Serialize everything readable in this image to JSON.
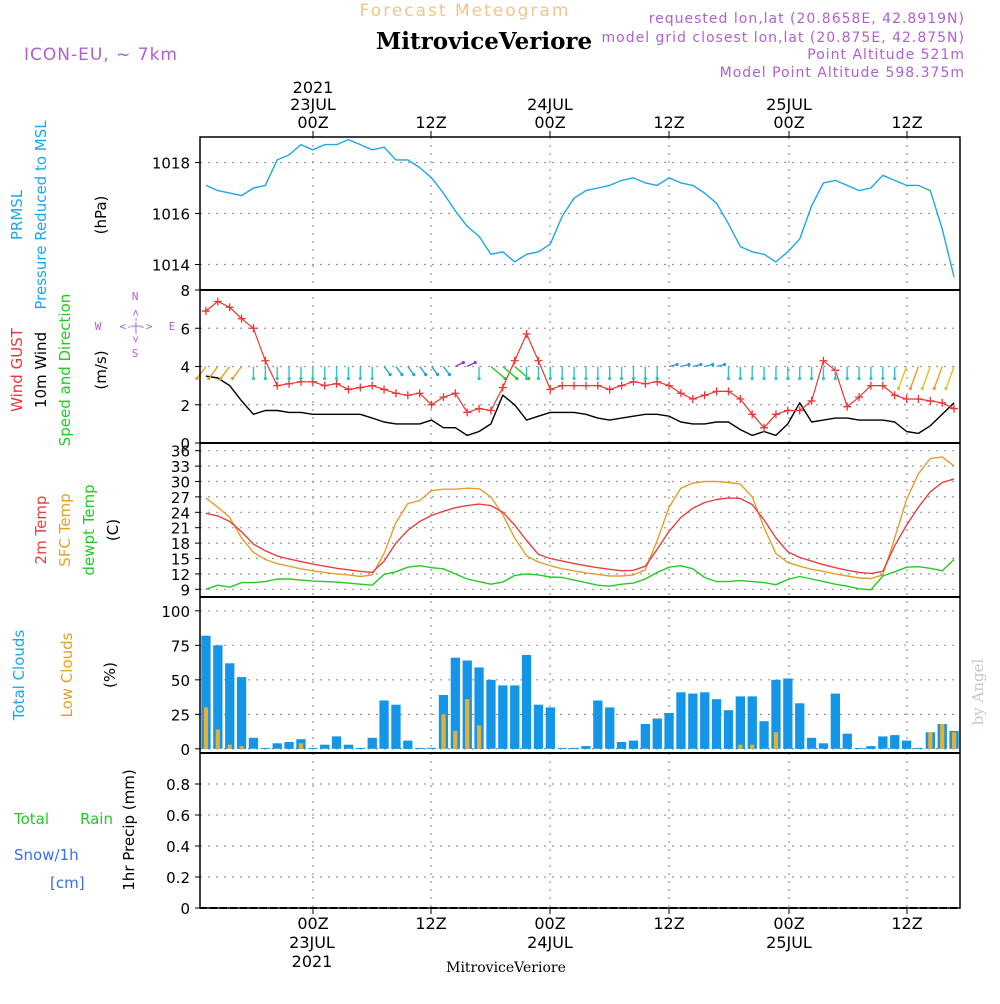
{
  "header": {
    "product": "Forecast Meteogram",
    "model": "ICON-EU, ~ 7km",
    "location": "MitroviceVeriore",
    "requested": "requested lon,lat (20.8658E, 42.8919N)",
    "closest": "model grid closest lon,lat (20.875E, 42.875N)",
    "point_altitude": "Point Altitude 521m",
    "model_altitude": "Model Point Altitude 598.375m",
    "watermark": "by Angel"
  },
  "time_axis": {
    "ticks": [
      "00Z",
      "12Z",
      "00Z",
      "12Z",
      "00Z",
      "12Z"
    ],
    "top_dates": [
      "23JUL",
      "24JUL",
      "25JUL"
    ],
    "top_year": "2021",
    "bottom_dates": [
      "23JUL",
      "24JUL",
      "25JUL"
    ],
    "bottom_year": "2021",
    "footer_location": "MitroviceVeriore"
  },
  "panels": {
    "pressure": {
      "labels": [
        "PRMSL",
        "Pressure Reduced to MSL",
        "(hPa)"
      ],
      "yticks": [
        "1014",
        "1016",
        "1018"
      ],
      "ylim": [
        1013,
        1019
      ]
    },
    "wind": {
      "labels": [
        "Wind GUST",
        "10m Wind",
        "Speed and Direction",
        "(m/s)"
      ],
      "compass": {
        "north": "N",
        "south": "S",
        "west": "W",
        "east": "E",
        "arrows_h": "<-|->",
        "arrows_v": "<-|->"
      },
      "yticks": [
        "0",
        "2",
        "4",
        "6",
        "8"
      ],
      "ylim": [
        0,
        8
      ]
    },
    "temp": {
      "labels": [
        "2m Temp",
        "SFC Temp",
        "dewpt Temp",
        "(C)"
      ],
      "yticks": [
        "9",
        "12",
        "15",
        "18",
        "21",
        "24",
        "27",
        "30",
        "33",
        "36"
      ],
      "ylim": [
        7.5,
        37.5
      ]
    },
    "clouds": {
      "labels": [
        "Total Clouds",
        "Low Clouds",
        "(%)"
      ],
      "yticks": [
        "0",
        "25",
        "50",
        "75",
        "100"
      ],
      "ylim": [
        -3,
        110
      ]
    },
    "precip": {
      "labels": [
        "Total",
        "Rain",
        "Snow/1h",
        "[cm]",
        "1hr Precip (mm)"
      ],
      "yticks": [
        "0",
        "0.2",
        "0.4",
        "0.6",
        "0.8"
      ],
      "ylim": [
        0,
        1
      ]
    }
  },
  "colors": {
    "pressure": "#1ea7e8",
    "gust": "#ee3535",
    "wind": "#000000",
    "t2m": "#e84040",
    "tsfc": "#e0a030",
    "dewpt": "#22cc22",
    "total_clouds": "#1496e8",
    "low_clouds": "#e8b030",
    "label_green": "#22cc22",
    "label_blue": "#3a6cf0",
    "label_cyan": "#1aa8e8",
    "label_purple": "#b060d0",
    "label_red": "#ee3535",
    "label_orange": "#e8a020",
    "title_orange": "#f2c58a"
  },
  "chart_data": [
    {
      "type": "line",
      "name": "pressure",
      "x": [
        0,
        1,
        2,
        3,
        4,
        5,
        6,
        7,
        8,
        9,
        10,
        11,
        12,
        13,
        14,
        15,
        16,
        17,
        18,
        19,
        20,
        21,
        22,
        23,
        24,
        25,
        26,
        27,
        28,
        29,
        30,
        31,
        32,
        33,
        34,
        35,
        36,
        37,
        38,
        39,
        40,
        41,
        42,
        43,
        44,
        45,
        46,
        47,
        48,
        49,
        50,
        51,
        52,
        53,
        54,
        55,
        56,
        57,
        58,
        59,
        60,
        61,
        62,
        63
      ],
      "values": [
        1017.1,
        1016.9,
        1016.8,
        1016.7,
        1017.0,
        1017.1,
        1018.1,
        1018.3,
        1018.7,
        1018.5,
        1018.7,
        1018.7,
        1018.9,
        1018.7,
        1018.5,
        1018.6,
        1018.1,
        1018.1,
        1017.8,
        1017.4,
        1016.8,
        1016.1,
        1015.5,
        1015.1,
        1014.4,
        1014.5,
        1014.1,
        1014.4,
        1014.5,
        1014.8,
        1015.9,
        1016.6,
        1016.9,
        1017.0,
        1017.1,
        1017.3,
        1017.4,
        1017.2,
        1017.1,
        1017.4,
        1017.2,
        1017.1,
        1016.8,
        1016.4,
        1015.6,
        1014.7,
        1014.5,
        1014.4,
        1014.1,
        1014.5,
        1015.0,
        1016.3,
        1017.2,
        1017.3,
        1017.1,
        1016.9,
        1017.0,
        1017.5,
        1017.3,
        1017.1,
        1017.1,
        1016.9,
        1015.4,
        1013.5
      ],
      "xlabel": "",
      "ylabel": "(hPa)"
    },
    {
      "type": "line",
      "name": "wind",
      "series": [
        {
          "name": "Wind GUST",
          "values": [
            6.9,
            7.4,
            7.1,
            6.5,
            6.0,
            4.3,
            3.0,
            3.1,
            3.2,
            3.2,
            3.0,
            3.1,
            2.8,
            2.9,
            3.0,
            2.8,
            2.6,
            2.5,
            2.6,
            2.0,
            2.4,
            2.6,
            1.6,
            1.8,
            1.7,
            2.9,
            4.3,
            5.7,
            4.3,
            2.8,
            3.0,
            3.0,
            3.0,
            3.0,
            2.8,
            3.0,
            3.2,
            3.1,
            3.2,
            3.0,
            2.6,
            2.3,
            2.5,
            2.7,
            2.7,
            2.3,
            1.5,
            0.8,
            1.5,
            1.7,
            1.7,
            2.2,
            4.3,
            3.8,
            1.9,
            2.4,
            3.0,
            3.0,
            2.5,
            2.3,
            2.3,
            2.2,
            2.1,
            1.8
          ]
        },
        {
          "name": "10m Wind",
          "values": [
            3.5,
            3.4,
            3.0,
            2.2,
            1.5,
            1.7,
            1.7,
            1.6,
            1.6,
            1.5,
            1.5,
            1.5,
            1.5,
            1.5,
            1.3,
            1.1,
            1.0,
            1.0,
            1.0,
            1.2,
            0.8,
            0.8,
            0.4,
            0.6,
            1.0,
            2.5,
            2.0,
            1.2,
            1.4,
            1.6,
            1.6,
            1.6,
            1.5,
            1.3,
            1.2,
            1.3,
            1.4,
            1.5,
            1.5,
            1.4,
            1.1,
            1.0,
            1.0,
            1.1,
            1.1,
            0.7,
            0.4,
            0.6,
            0.4,
            1.0,
            2.1,
            1.1,
            1.2,
            1.3,
            1.3,
            1.2,
            1.2,
            1.2,
            1.1,
            0.6,
            0.5,
            0.9,
            1.5,
            2.1
          ]
        }
      ]
    },
    {
      "type": "line",
      "name": "temperature",
      "series": [
        {
          "name": "2m Temp",
          "values": [
            23.8,
            23.3,
            22.2,
            20.2,
            17.8,
            16.5,
            15.5,
            14.9,
            14.4,
            13.9,
            13.5,
            13.1,
            12.8,
            12.5,
            12.3,
            14.5,
            18.0,
            20.5,
            22.2,
            23.4,
            24.2,
            24.9,
            25.3,
            25.6,
            25.3,
            24.0,
            21.5,
            18.5,
            15.8,
            15.0,
            14.5,
            14.0,
            13.6,
            13.2,
            12.9,
            12.6,
            12.7,
            13.5,
            16.8,
            20.3,
            23.0,
            24.8,
            25.9,
            26.5,
            26.8,
            26.7,
            25.5,
            22.5,
            19.0,
            16.3,
            15.2,
            14.5,
            13.8,
            13.2,
            12.7,
            12.3,
            12.1,
            12.5,
            17.5,
            21.5,
            25.0,
            28.0,
            29.8,
            30.5
          ]
        },
        {
          "name": "SFC Temp",
          "values": [
            26.8,
            25.0,
            23.0,
            19.0,
            16.2,
            14.8,
            14.0,
            13.5,
            13.0,
            12.6,
            12.3,
            12.0,
            11.8,
            11.5,
            11.8,
            16.0,
            22.0,
            25.7,
            26.3,
            28.2,
            28.5,
            28.5,
            28.7,
            28.6,
            27.0,
            23.5,
            19.0,
            15.5,
            14.3,
            13.6,
            13.0,
            12.6,
            12.2,
            11.9,
            11.6,
            11.6,
            11.8,
            12.8,
            18.5,
            25.0,
            28.7,
            29.7,
            30.0,
            30.0,
            29.8,
            29.5,
            27.0,
            21.0,
            16.0,
            14.2,
            13.5,
            12.9,
            12.5,
            12.0,
            11.6,
            11.2,
            11.1,
            11.8,
            19.0,
            26.5,
            31.5,
            34.5,
            34.8,
            33.0
          ]
        },
        {
          "name": "dewpt Temp",
          "values": [
            9.0,
            9.8,
            9.4,
            10.3,
            10.3,
            10.5,
            11.0,
            11.0,
            10.8,
            10.6,
            10.5,
            10.4,
            10.2,
            10.0,
            9.8,
            11.9,
            12.4,
            13.3,
            13.6,
            13.2,
            13.0,
            12.0,
            11.0,
            10.5,
            10.0,
            10.4,
            11.7,
            12.0,
            11.8,
            11.4,
            11.3,
            10.8,
            10.3,
            9.8,
            9.6,
            10.0,
            10.2,
            11.0,
            12.3,
            13.3,
            13.6,
            13.0,
            11.3,
            10.5,
            10.5,
            10.7,
            10.5,
            10.3,
            9.9,
            10.9,
            11.5,
            11.0,
            10.5,
            10.0,
            9.6,
            9.1,
            8.9,
            11.6,
            12.4,
            13.3,
            13.4,
            13.1,
            12.6,
            14.8
          ]
        }
      ],
      "ylabel": "(C)"
    },
    {
      "type": "bar",
      "name": "clouds",
      "series": [
        {
          "name": "Total Clouds",
          "values": [
            82,
            75,
            62,
            52,
            8,
            0,
            4,
            5,
            7,
            0,
            3,
            9,
            3,
            0,
            8,
            35,
            32,
            6,
            0,
            0,
            39,
            66,
            64,
            59,
            50,
            46,
            46,
            68,
            32,
            30,
            0,
            0,
            2,
            35,
            30,
            5,
            6,
            18,
            22,
            26,
            41,
            40,
            41,
            36,
            28,
            38,
            38,
            20,
            50,
            51,
            33,
            8,
            4,
            40,
            11,
            0,
            2,
            9,
            10,
            6,
            0,
            12,
            18,
            13
          ]
        },
        {
          "name": "Low Clouds",
          "values": [
            30,
            14,
            3,
            2,
            0,
            0,
            0,
            0,
            4,
            0,
            0,
            0,
            0,
            0,
            0,
            0,
            0,
            0,
            0,
            0,
            25,
            13,
            36,
            17,
            0,
            0,
            0,
            0,
            0,
            0,
            0,
            0,
            0,
            0,
            0,
            0,
            0,
            0,
            0,
            0,
            0,
            0,
            0,
            0,
            0,
            3,
            3,
            0,
            12,
            0,
            0,
            0,
            0,
            0,
            0,
            0,
            0,
            0,
            0,
            0,
            0,
            12,
            18,
            12
          ]
        }
      ],
      "ylabel": "(%)"
    },
    {
      "type": "bar",
      "name": "precipitation",
      "values": [],
      "ylabel": "1hr Precip (mm)",
      "ylim": [
        0,
        1
      ]
    }
  ]
}
